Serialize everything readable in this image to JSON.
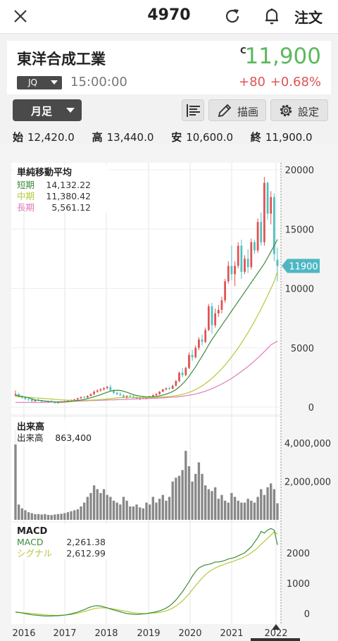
{
  "header": {
    "title": "4970",
    "order_label": "注文"
  },
  "quote": {
    "company_name": "東洋合成工業",
    "market": "JQ",
    "time": "15:00:00",
    "price_mark": "C",
    "price": "11,900",
    "change": "+80",
    "change_pct": "+0.68%",
    "up_color": "#e05353",
    "price_color": "#5cb85c"
  },
  "toolbar": {
    "period_label": "月足",
    "draw_label": "描画",
    "settings_label": "設定"
  },
  "ohlc": {
    "open_label": "始",
    "open_value": "12,420.0",
    "high_label": "高",
    "high_value": "13,440.0",
    "low_label": "安",
    "low_value": "10,600.0",
    "close_label": "終",
    "close_value": "11,900.0"
  },
  "chart_data": [
    {
      "type": "candlestick",
      "title": "単純移動平均",
      "legend": [
        {
          "name": "短期",
          "value": "14,132.22",
          "color": "#3d8b3d"
        },
        {
          "name": "中期",
          "value": "11,380.42",
          "color": "#b5c93a"
        },
        {
          "name": "長期",
          "value": "5,561.12",
          "color": "#e07ab8"
        }
      ],
      "y_ticks": [
        "20000",
        "15000",
        "10000",
        "5000",
        "0"
      ],
      "ylim": [
        0,
        20000
      ],
      "last_price_label": "11900",
      "x_ticks": [
        "2016",
        "2017",
        "2018",
        "2019",
        "2020",
        "2021",
        "2022"
      ],
      "up_color": "#e05353",
      "down_color": "#4fc1c1",
      "candles": [
        [
          1000,
          1400,
          900,
          1100
        ],
        [
          1100,
          1200,
          800,
          900
        ],
        [
          900,
          1000,
          700,
          800
        ],
        [
          800,
          900,
          600,
          700
        ],
        [
          700,
          800,
          500,
          650
        ],
        [
          650,
          700,
          450,
          500
        ],
        [
          500,
          650,
          450,
          600
        ],
        [
          600,
          700,
          500,
          550
        ],
        [
          550,
          600,
          400,
          450
        ],
        [
          450,
          500,
          350,
          400
        ],
        [
          400,
          550,
          350,
          500
        ],
        [
          500,
          600,
          400,
          450
        ],
        [
          450,
          500,
          300,
          350
        ],
        [
          350,
          450,
          300,
          400
        ],
        [
          400,
          500,
          350,
          450
        ],
        [
          450,
          550,
          400,
          500
        ],
        [
          500,
          600,
          450,
          550
        ],
        [
          550,
          650,
          500,
          600
        ],
        [
          600,
          700,
          550,
          650
        ],
        [
          650,
          800,
          600,
          750
        ],
        [
          750,
          900,
          700,
          850
        ],
        [
          850,
          950,
          750,
          800
        ],
        [
          800,
          1000,
          750,
          950
        ],
        [
          950,
          1150,
          900,
          1100
        ],
        [
          1100,
          1400,
          1000,
          1300
        ],
        [
          1300,
          1500,
          1200,
          1400
        ],
        [
          1400,
          1600,
          1300,
          1500
        ],
        [
          1500,
          1700,
          1400,
          1600
        ],
        [
          1600,
          1800,
          1500,
          1700
        ],
        [
          1700,
          1900,
          1300,
          1400
        ],
        [
          1400,
          1500,
          1100,
          1200
        ],
        [
          1200,
          1300,
          1000,
          1100
        ],
        [
          1100,
          1250,
          950,
          1000
        ],
        [
          1000,
          1100,
          800,
          850
        ],
        [
          850,
          1000,
          700,
          950
        ],
        [
          950,
          1050,
          800,
          900
        ],
        [
          900,
          1000,
          750,
          800
        ],
        [
          800,
          900,
          650,
          700
        ],
        [
          700,
          850,
          600,
          800
        ],
        [
          800,
          900,
          700,
          750
        ],
        [
          750,
          850,
          650,
          800
        ],
        [
          800,
          950,
          750,
          900
        ],
        [
          900,
          1100,
          850,
          1000
        ],
        [
          1000,
          1200,
          950,
          1100
        ],
        [
          1100,
          1350,
          1050,
          1300
        ],
        [
          1300,
          1550,
          1250,
          1500
        ],
        [
          1500,
          1650,
          1400,
          1600
        ],
        [
          1600,
          1700,
          1450,
          1550
        ],
        [
          1550,
          1900,
          1500,
          1800
        ],
        [
          1800,
          2300,
          1750,
          2200
        ],
        [
          2200,
          3000,
          2100,
          2900
        ],
        [
          2900,
          3300,
          2500,
          2700
        ],
        [
          2700,
          3400,
          2600,
          3300
        ],
        [
          3300,
          4600,
          3200,
          4400
        ],
        [
          4400,
          4800,
          3900,
          4200
        ],
        [
          4200,
          5200,
          4100,
          5000
        ],
        [
          5000,
          5900,
          4800,
          5700
        ],
        [
          5700,
          6100,
          5200,
          5500
        ],
        [
          5500,
          6700,
          5400,
          6500
        ],
        [
          6500,
          8700,
          6400,
          8500
        ],
        [
          8500,
          8800,
          6200,
          6900
        ],
        [
          6900,
          8300,
          6700,
          7900
        ],
        [
          7900,
          8600,
          7600,
          8200
        ],
        [
          8200,
          9300,
          7900,
          9000
        ],
        [
          9000,
          10800,
          8800,
          10600
        ],
        [
          10600,
          12300,
          10400,
          11900
        ],
        [
          11900,
          13600,
          10700,
          11200
        ],
        [
          11200,
          12300,
          10200,
          11900
        ],
        [
          11900,
          13900,
          11700,
          13600
        ],
        [
          13600,
          14100,
          10800,
          11400
        ],
        [
          11400,
          12800,
          11200,
          12500
        ],
        [
          12500,
          13300,
          11300,
          11800
        ],
        [
          11800,
          14200,
          11600,
          13900
        ],
        [
          13900,
          14100,
          12900,
          13200
        ],
        [
          13200,
          15900,
          13000,
          15600
        ],
        [
          15600,
          16400,
          13600,
          13900
        ],
        [
          13900,
          19400,
          13600,
          18900
        ],
        [
          18900,
          19000,
          15800,
          16300
        ],
        [
          16300,
          18200,
          15400,
          17700
        ],
        [
          17700,
          18000,
          12300,
          12900
        ],
        [
          12420,
          13440,
          10600,
          11900
        ]
      ],
      "ma_short": [
        1000,
        950,
        900,
        850,
        800,
        700,
        600,
        580,
        550,
        520,
        480,
        460,
        440,
        420,
        420,
        430,
        450,
        480,
        520,
        560,
        600,
        660,
        720,
        790,
        870,
        960,
        1050,
        1150,
        1250,
        1350,
        1400,
        1420,
        1400,
        1350,
        1250,
        1150,
        1050,
        980,
        930,
        900,
        880,
        870,
        880,
        900,
        950,
        1020,
        1100,
        1200,
        1320,
        1480,
        1700,
        1950,
        2250,
        2600,
        3000,
        3400,
        3850,
        4300,
        4750,
        5250,
        5700,
        6100,
        6500,
        6900,
        7300,
        7700,
        8100,
        8500,
        8900,
        9300,
        9700,
        10100,
        10500,
        10900,
        11300,
        11700,
        12100,
        12600,
        13100,
        13600,
        14132
      ],
      "ma_mid": [
        900,
        880,
        860,
        840,
        820,
        800,
        780,
        760,
        740,
        720,
        700,
        680,
        660,
        640,
        620,
        600,
        590,
        580,
        570,
        570,
        570,
        575,
        580,
        590,
        600,
        620,
        640,
        660,
        690,
        720,
        750,
        780,
        800,
        810,
        815,
        815,
        815,
        810,
        810,
        810,
        810,
        815,
        820,
        830,
        845,
        860,
        880,
        900,
        930,
        970,
        1020,
        1080,
        1150,
        1240,
        1350,
        1480,
        1630,
        1800,
        1990,
        2200,
        2430,
        2680,
        2950,
        3240,
        3550,
        3880,
        4230,
        4600,
        4990,
        5400,
        5830,
        6280,
        6750,
        7240,
        7750,
        8280,
        8830,
        9400,
        9990,
        10600,
        11380
      ],
      "ma_long": [
        400,
        400,
        400,
        400,
        400,
        400,
        400,
        400,
        400,
        410,
        420,
        430,
        440,
        450,
        460,
        470,
        480,
        490,
        500,
        510,
        520,
        530,
        540,
        550,
        560,
        570,
        580,
        590,
        600,
        610,
        620,
        630,
        640,
        650,
        660,
        670,
        680,
        690,
        700,
        710,
        720,
        730,
        740,
        750,
        760,
        780,
        800,
        820,
        840,
        860,
        890,
        920,
        960,
        1000,
        1050,
        1110,
        1180,
        1260,
        1350,
        1450,
        1560,
        1680,
        1810,
        1950,
        2100,
        2260,
        2430,
        2610,
        2800,
        3000,
        3210,
        3430,
        3660,
        3900,
        4150,
        4410,
        4680,
        4960,
        5250,
        5400,
        5561
      ]
    },
    {
      "type": "bar",
      "title": "出来高",
      "legend": [
        {
          "name": "出来高",
          "value": "863,400"
        }
      ],
      "y_ticks": [
        "4,000,000",
        "2,000,000"
      ],
      "ylim": [
        0,
        5000000
      ],
      "values": [
        4700000,
        800000,
        600000,
        500000,
        400000,
        350000,
        300000,
        300000,
        280000,
        300000,
        260000,
        250000,
        280000,
        300000,
        320000,
        350000,
        400000,
        450000,
        500000,
        550000,
        700000,
        900000,
        1200000,
        1400000,
        1800000,
        1600000,
        1400000,
        1600000,
        1300000,
        1200000,
        1000000,
        900000,
        800000,
        1200000,
        1000000,
        700000,
        700000,
        800000,
        650000,
        600000,
        900000,
        800000,
        1200000,
        900000,
        1100000,
        1300000,
        1000000,
        1200000,
        2000000,
        2200000,
        2300000,
        2600000,
        3600000,
        2800000,
        2000000,
        2400000,
        3000000,
        2400000,
        1800000,
        1600000,
        1500000,
        1700000,
        1100000,
        1300000,
        1000000,
        900000,
        1400000,
        1200000,
        1000000,
        900000,
        900000,
        1100000,
        1000000,
        900000,
        1200000,
        1600000,
        1300000,
        1700000,
        1900000,
        1600000,
        863400
      ],
      "color": "#888888"
    },
    {
      "type": "line",
      "title": "MACD",
      "legend": [
        {
          "name": "MACD",
          "value": "2,261.38",
          "color": "#3d8b3d"
        },
        {
          "name": "シグナル",
          "value": "2,612.99",
          "color": "#b5c93a"
        }
      ],
      "y_ticks": [
        "2000",
        "1000",
        "0"
      ],
      "ylim": [
        -300,
        2900
      ],
      "macd": [
        50,
        40,
        20,
        0,
        -20,
        -40,
        -50,
        -60,
        -70,
        -80,
        -80,
        -80,
        -75,
        -70,
        -60,
        -50,
        -30,
        -10,
        20,
        50,
        90,
        130,
        180,
        220,
        250,
        260,
        250,
        220,
        190,
        150,
        120,
        90,
        60,
        30,
        0,
        -10,
        -20,
        -30,
        -20,
        -10,
        0,
        20,
        40,
        60,
        90,
        130,
        180,
        250,
        340,
        450,
        580,
        720,
        880,
        1050,
        1230,
        1380,
        1500,
        1560,
        1600,
        1620,
        1650,
        1700,
        1700,
        1720,
        1750,
        1800,
        1820,
        1850,
        1900,
        1950,
        2000,
        2100,
        2200,
        2350,
        2500,
        2700,
        2650,
        2750,
        2800,
        2750,
        2261
      ],
      "signal": [
        40,
        35,
        30,
        20,
        10,
        0,
        -10,
        -20,
        -30,
        -40,
        -50,
        -55,
        -60,
        -60,
        -55,
        -50,
        -40,
        -30,
        -10,
        10,
        40,
        70,
        100,
        130,
        160,
        180,
        190,
        190,
        180,
        170,
        150,
        130,
        110,
        90,
        70,
        50,
        30,
        15,
        5,
        0,
        0,
        5,
        15,
        25,
        40,
        60,
        90,
        130,
        180,
        250,
        330,
        420,
        530,
        650,
        790,
        920,
        1050,
        1170,
        1280,
        1370,
        1440,
        1500,
        1550,
        1590,
        1630,
        1670,
        1700,
        1740,
        1780,
        1820,
        1870,
        1930,
        2000,
        2080,
        2170,
        2280,
        2380,
        2480,
        2580,
        2700,
        2613
      ]
    }
  ]
}
